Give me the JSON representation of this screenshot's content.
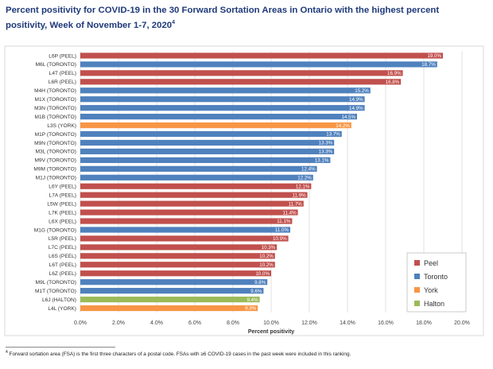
{
  "chart_data": {
    "type": "bar",
    "orientation": "horizontal",
    "title": "Percent positivity for COVID-19 in the 30 Forward Sortation Areas in Ontario with the highest percent positivity, Week of November 1-7, 2020",
    "title_footnote_marker": "4",
    "xlabel": "Percent positivity",
    "ylabel": "",
    "xlim": [
      0,
      20
    ],
    "x_ticks": [
      "0.0%",
      "2.0%",
      "4.0%",
      "6.0%",
      "8.0%",
      "10.0%",
      "12.0%",
      "14.0%",
      "16.0%",
      "18.0%",
      "20.0%"
    ],
    "grid": "vertical",
    "legend_position": "bottom-right",
    "legend": [
      {
        "name": "Peel",
        "color": "#c0504d"
      },
      {
        "name": "Toronto",
        "color": "#4f81bd"
      },
      {
        "name": "York",
        "color": "#f79646"
      },
      {
        "name": "Halton",
        "color": "#9bbb59"
      }
    ],
    "bars": [
      {
        "label": "L6P (PEEL)",
        "value": 19.0,
        "text": "19.0%",
        "region": "Peel"
      },
      {
        "label": "M6L (TORONTO)",
        "value": 18.7,
        "text": "18.7%",
        "region": "Toronto"
      },
      {
        "label": "L4T (PEEL)",
        "value": 16.9,
        "text": "16.9%",
        "region": "Peel"
      },
      {
        "label": "L6R (PEEL)",
        "value": 16.8,
        "text": "16.8%",
        "region": "Peel"
      },
      {
        "label": "M4H (TORONTO)",
        "value": 15.2,
        "text": "15.2%",
        "region": "Toronto"
      },
      {
        "label": "M1X (TORONTO)",
        "value": 14.9,
        "text": "14.9%",
        "region": "Toronto"
      },
      {
        "label": "M3N (TORONTO)",
        "value": 14.9,
        "text": "14.9%",
        "region": "Toronto"
      },
      {
        "label": "M1B (TORONTO)",
        "value": 14.5,
        "text": "14.5%",
        "region": "Toronto"
      },
      {
        "label": "L3S (YORK)",
        "value": 14.2,
        "text": "14.2%",
        "region": "York"
      },
      {
        "label": "M1P (TORONTO)",
        "value": 13.7,
        "text": "13.7%",
        "region": "Toronto"
      },
      {
        "label": "M9N (TORONTO)",
        "value": 13.3,
        "text": "13.3%",
        "region": "Toronto"
      },
      {
        "label": "M3L (TORONTO)",
        "value": 13.3,
        "text": "13.3%",
        "region": "Toronto"
      },
      {
        "label": "M9V (TORONTO)",
        "value": 13.1,
        "text": "13.1%",
        "region": "Toronto"
      },
      {
        "label": "M9M (TORONTO)",
        "value": 12.4,
        "text": "12.4%",
        "region": "Toronto"
      },
      {
        "label": "M1J (TORONTO)",
        "value": 12.2,
        "text": "12.2%",
        "region": "Toronto"
      },
      {
        "label": "L6Y (PEEL)",
        "value": 12.1,
        "text": "12.1%",
        "region": "Peel"
      },
      {
        "label": "L7A (PEEL)",
        "value": 11.9,
        "text": "11.9%",
        "region": "Peel"
      },
      {
        "label": "L5W (PEEL)",
        "value": 11.7,
        "text": "11.7%",
        "region": "Peel"
      },
      {
        "label": "L7K (PEEL)",
        "value": 11.4,
        "text": "11.4%",
        "region": "Peel"
      },
      {
        "label": "L6X (PEEL)",
        "value": 11.1,
        "text": "11.1%",
        "region": "Peel"
      },
      {
        "label": "M1G (TORONTO)",
        "value": 11.0,
        "text": "11.0%",
        "region": "Toronto"
      },
      {
        "label": "L5R (PEEL)",
        "value": 10.9,
        "text": "10.9%",
        "region": "Peel"
      },
      {
        "label": "L7C (PEEL)",
        "value": 10.3,
        "text": "10.3%",
        "region": "Peel"
      },
      {
        "label": "L6S (PEEL)",
        "value": 10.2,
        "text": "10.2%",
        "region": "Peel"
      },
      {
        "label": "L6T (PEEL)",
        "value": 10.2,
        "text": "10.2%",
        "region": "Peel"
      },
      {
        "label": "L6Z (PEEL)",
        "value": 10.0,
        "text": "10.0%",
        "region": "Peel"
      },
      {
        "label": "M9L (TORONTO)",
        "value": 9.8,
        "text": "9.8%",
        "region": "Toronto"
      },
      {
        "label": "M1T (TORONTO)",
        "value": 9.6,
        "text": "9.6%",
        "region": "Toronto"
      },
      {
        "label": "L6J (HALTON)",
        "value": 9.4,
        "text": "9.4%",
        "region": "Halton"
      },
      {
        "label": "L4L (YORK)",
        "value": 9.3,
        "text": "9.3%",
        "region": "York"
      }
    ]
  },
  "footnote": {
    "marker": "4",
    "text": " Forward sortation area (FSA) is the first three characters of a postal code. FSAs with ≥6 COVID-19 cases in the past week were included in this ranking."
  }
}
